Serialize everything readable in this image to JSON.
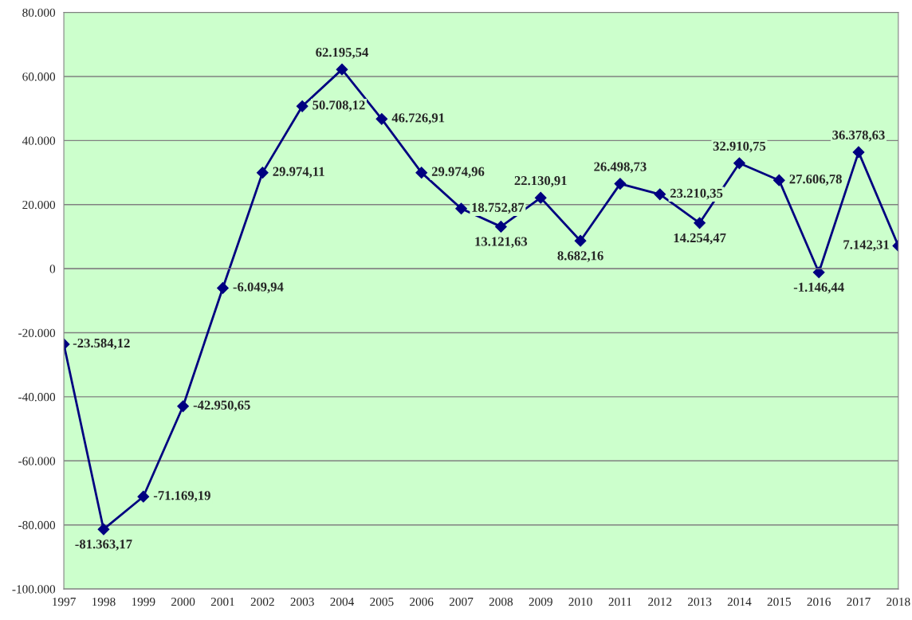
{
  "chart_data": {
    "type": "line",
    "categories": [
      "1997",
      "1998",
      "1999",
      "2000",
      "2001",
      "2002",
      "2003",
      "2004",
      "2005",
      "2006",
      "2007",
      "2008",
      "2009",
      "2010",
      "2011",
      "2012",
      "2013",
      "2014",
      "2015",
      "2016",
      "2017",
      "2018"
    ],
    "series": [
      {
        "color": "#000080",
        "values": [
          -23584.12,
          -81363.17,
          -71169.19,
          -42950.65,
          -6049.94,
          29974.11,
          50708.12,
          62195.54,
          46726.91,
          29974.96,
          18752.87,
          13121.63,
          22130.91,
          8682.16,
          26498.73,
          23210.35,
          14254.47,
          32910.75,
          27606.78,
          -1146.44,
          36378.63,
          7142.31
        ],
        "value_labels": [
          "-23.584,12",
          "-81.363,17",
          "-71.169,19",
          "-42.950,65",
          "-6.049,94",
          "29.974,11",
          "50.708,12",
          "62.195,54",
          "46.726,91",
          "29.974,96",
          "18.752,87",
          "13.121,63",
          "22.130,91",
          "8.682,16",
          "26.498,73",
          "23.210,35",
          "14.254,47",
          "32.910,75",
          "27.606,78",
          "-1.146,44",
          "36.378,63",
          "7.142,31"
        ]
      }
    ],
    "ylim": [
      -100000,
      80000
    ],
    "yticks": [
      {
        "value": -100000,
        "label": "-100.000"
      },
      {
        "value": -80000,
        "label": "-80.000"
      },
      {
        "value": -60000,
        "label": "-60.000"
      },
      {
        "value": -40000,
        "label": "-40.000"
      },
      {
        "value": -20000,
        "label": "-20.000"
      },
      {
        "value": 0,
        "label": "0"
      },
      {
        "value": 20000,
        "label": "20.000"
      },
      {
        "value": 40000,
        "label": "40.000"
      },
      {
        "value": 60000,
        "label": "60.000"
      },
      {
        "value": 80000,
        "label": "80.000"
      }
    ],
    "grid": "y",
    "marker": "diamond",
    "line_style": "solid",
    "legend": false
  }
}
